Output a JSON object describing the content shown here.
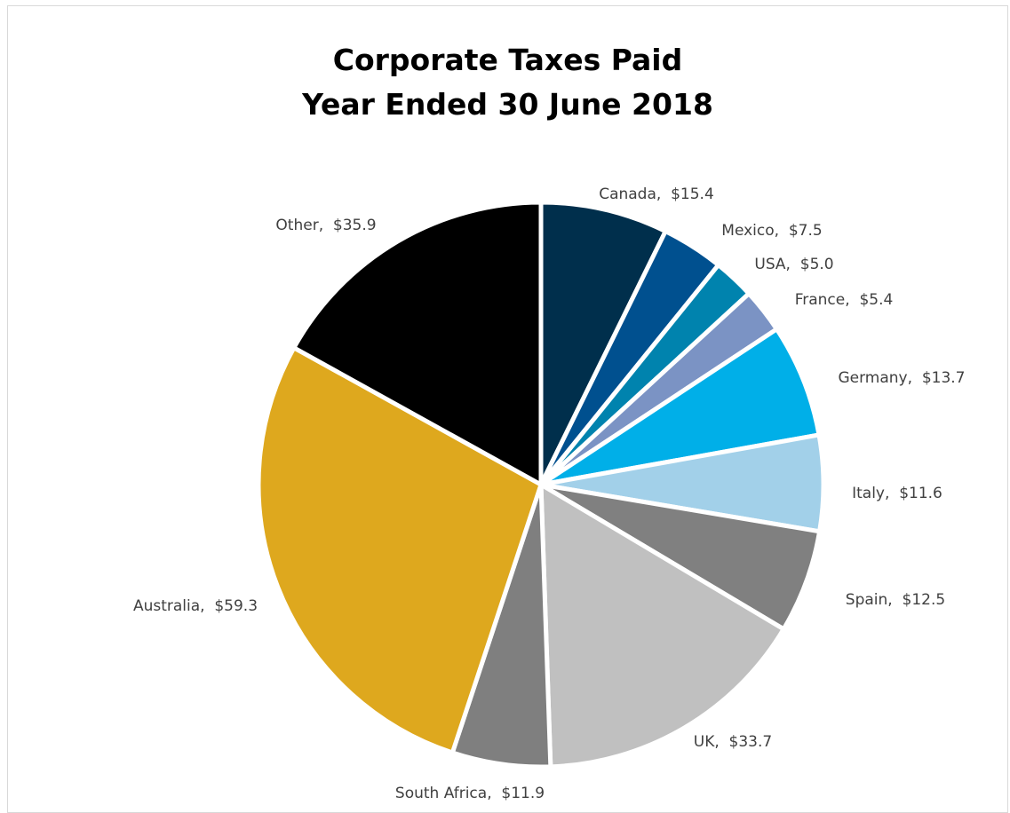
{
  "chart_data": {
    "type": "pie",
    "title": [
      "Corporate Taxes Paid",
      "Year Ended 30 June 2018"
    ],
    "slices": [
      {
        "label": "Canada",
        "value": 15.4,
        "value_text": "$15.4",
        "color": "#002f4c"
      },
      {
        "label": "Mexico",
        "value": 7.5,
        "value_text": "$7.5",
        "color": "#00508f"
      },
      {
        "label": "USA",
        "value": 5.0,
        "value_text": "$5.0",
        "color": "#0083ae"
      },
      {
        "label": "France",
        "value": 5.4,
        "value_text": "$5.4",
        "color": "#7b93c4"
      },
      {
        "label": "Germany",
        "value": 13.7,
        "value_text": "$13.7",
        "color": "#00afe8"
      },
      {
        "label": "Italy",
        "value": 11.6,
        "value_text": "$11.6",
        "color": "#a2d0e9"
      },
      {
        "label": "Spain",
        "value": 12.5,
        "value_text": "$12.5",
        "color": "#808080"
      },
      {
        "label": "UK",
        "value": 33.7,
        "value_text": "$33.7",
        "color": "#c0c0c0"
      },
      {
        "label": "South Africa",
        "value": 11.9,
        "value_text": "$11.9",
        "color": "#7f7f7f"
      },
      {
        "label": "Australia",
        "value": 59.3,
        "value_text": "$59.3",
        "color": "#dea81e"
      },
      {
        "label": "Other",
        "value": 35.9,
        "value_text": "$35.9",
        "color": "#000000"
      }
    ],
    "label_separator": ",  ",
    "legend": "none",
    "start_angle": "12 o'clock",
    "direction": "clockwise"
  }
}
